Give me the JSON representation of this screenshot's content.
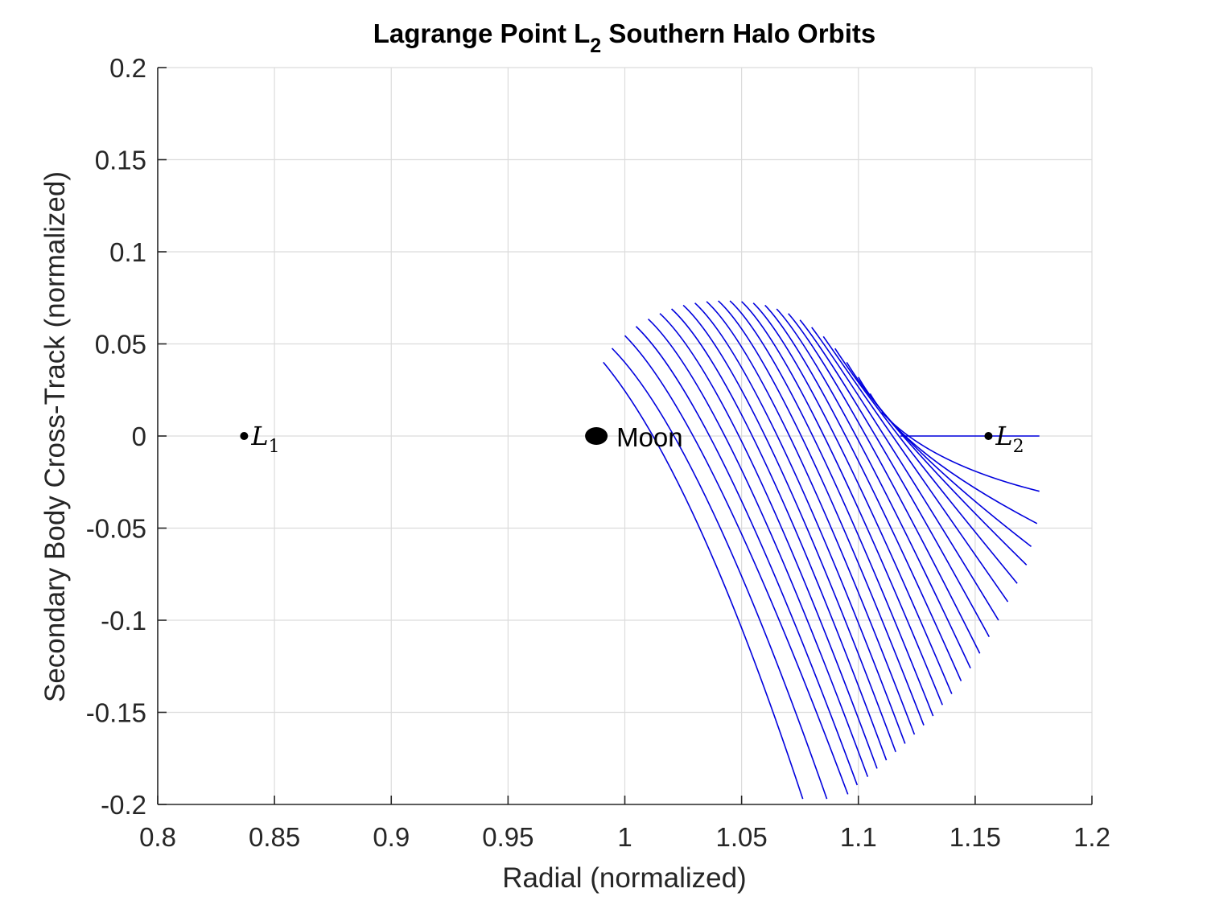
{
  "chart_data": {
    "type": "line",
    "title_main": "Lagrange Point L",
    "title_sub": "2",
    "title_rest": " Southern Halo Orbits",
    "xlabel": "Radial (normalized)",
    "ylabel": "Secondary Body Cross-Track (normalized)",
    "xlim": [
      0.8,
      1.2
    ],
    "ylim": [
      -0.2,
      0.2
    ],
    "x_ticks": [
      0.8,
      0.85,
      0.9,
      0.95,
      1.0,
      1.05,
      1.1,
      1.15,
      1.2
    ],
    "x_tick_labels": [
      "0.8",
      "0.85",
      "0.9",
      "0.95",
      "1",
      "1.05",
      "1.1",
      "1.15",
      "1.2"
    ],
    "y_ticks": [
      -0.2,
      -0.15,
      -0.1,
      -0.05,
      0,
      0.05,
      0.1,
      0.15,
      0.2
    ],
    "y_tick_labels": [
      "-0.2",
      "-0.15",
      "-0.1",
      "-0.05",
      "0",
      "0.05",
      "0.1",
      "0.15",
      "0.2"
    ],
    "grid": true,
    "orbit_color": "#0000dd",
    "orbits": [
      {
        "top": [
          0.9908,
          0.04
        ],
        "peak": [
          1.03,
          -0.02
        ],
        "bottom": [
          1.0762,
          -0.197
        ]
      },
      {
        "top": [
          0.9945,
          0.0476
        ],
        "peak": [
          1.032,
          0.0
        ],
        "bottom": [
          1.0865,
          -0.197
        ]
      },
      {
        "top": [
          1.0,
          0.0545
        ],
        "peak": [
          1.035,
          0.01
        ],
        "bottom": [
          1.0955,
          -0.1945
        ]
      },
      {
        "top": [
          1.0048,
          0.0595
        ],
        "peak": [
          1.039,
          0.018
        ],
        "bottom": [
          1.0995,
          -0.1895
        ]
      },
      {
        "top": [
          1.01,
          0.0635
        ],
        "peak": [
          1.043,
          0.024
        ],
        "bottom": [
          1.104,
          -0.185
        ]
      },
      {
        "top": [
          1.015,
          0.0665
        ],
        "peak": [
          1.047,
          0.029
        ],
        "bottom": [
          1.108,
          -0.1805
        ]
      },
      {
        "top": [
          1.02,
          0.069
        ],
        "peak": [
          1.051,
          0.033
        ],
        "bottom": [
          1.112,
          -0.176
        ]
      },
      {
        "top": [
          1.025,
          0.071
        ],
        "peak": [
          1.055,
          0.036
        ],
        "bottom": [
          1.116,
          -0.1715
        ]
      },
      {
        "top": [
          1.03,
          0.0722
        ],
        "peak": [
          1.059,
          0.0385
        ],
        "bottom": [
          1.12,
          -0.167
        ]
      },
      {
        "top": [
          1.035,
          0.073
        ],
        "peak": [
          1.063,
          0.0405
        ],
        "bottom": [
          1.124,
          -0.162
        ]
      },
      {
        "top": [
          1.04,
          0.0734
        ],
        "peak": [
          1.067,
          0.042
        ],
        "bottom": [
          1.128,
          -0.157
        ]
      },
      {
        "top": [
          1.045,
          0.0734
        ],
        "peak": [
          1.071,
          0.043
        ],
        "bottom": [
          1.132,
          -0.152
        ]
      },
      {
        "top": [
          1.05,
          0.073
        ],
        "peak": [
          1.075,
          0.043
        ],
        "bottom": [
          1.136,
          -0.146
        ]
      },
      {
        "top": [
          1.055,
          0.0722
        ],
        "peak": [
          1.079,
          0.0425
        ],
        "bottom": [
          1.14,
          -0.14
        ]
      },
      {
        "top": [
          1.06,
          0.071
        ],
        "peak": [
          1.083,
          0.041
        ],
        "bottom": [
          1.144,
          -0.133
        ]
      },
      {
        "top": [
          1.065,
          0.069
        ],
        "peak": [
          1.087,
          0.039
        ],
        "bottom": [
          1.148,
          -0.126
        ]
      },
      {
        "top": [
          1.07,
          0.0665
        ],
        "peak": [
          1.091,
          0.036
        ],
        "bottom": [
          1.152,
          -0.118
        ]
      },
      {
        "top": [
          1.075,
          0.063
        ],
        "peak": [
          1.095,
          0.032
        ],
        "bottom": [
          1.156,
          -0.109
        ]
      },
      {
        "top": [
          1.08,
          0.059
        ],
        "peak": [
          1.099,
          0.027
        ],
        "bottom": [
          1.16,
          -0.1
        ]
      },
      {
        "top": [
          1.085,
          0.054
        ],
        "peak": [
          1.103,
          0.021
        ],
        "bottom": [
          1.164,
          -0.09
        ]
      },
      {
        "top": [
          1.09,
          0.0475
        ],
        "peak": [
          1.107,
          0.014
        ],
        "bottom": [
          1.168,
          -0.08
        ]
      },
      {
        "top": [
          1.095,
          0.04
        ],
        "peak": [
          1.111,
          0.006
        ],
        "bottom": [
          1.172,
          -0.07
        ]
      },
      {
        "top": [
          1.1,
          0.032
        ],
        "peak": [
          1.115,
          -0.002
        ],
        "bottom": [
          1.174,
          -0.06
        ]
      },
      {
        "top": [
          1.105,
          0.023
        ],
        "peak": [
          1.12,
          -0.01
        ],
        "bottom": [
          1.1765,
          -0.0475
        ]
      },
      {
        "top": [
          1.11,
          0.013
        ],
        "peak": [
          1.13,
          -0.015
        ],
        "bottom": [
          1.1775,
          -0.03
        ]
      },
      {
        "top": [
          1.118,
          0.0
        ],
        "peak": [
          1.15,
          0.0
        ],
        "bottom": [
          1.1775,
          0.0
        ]
      }
    ],
    "points": [
      {
        "name": "L",
        "sub": "1",
        "x": 0.837,
        "y": 0
      },
      {
        "name": "L",
        "sub": "2",
        "x": 1.1557,
        "y": 0
      }
    ],
    "moon": {
      "label": "Moon",
      "x": 0.9878,
      "y": 0
    }
  }
}
